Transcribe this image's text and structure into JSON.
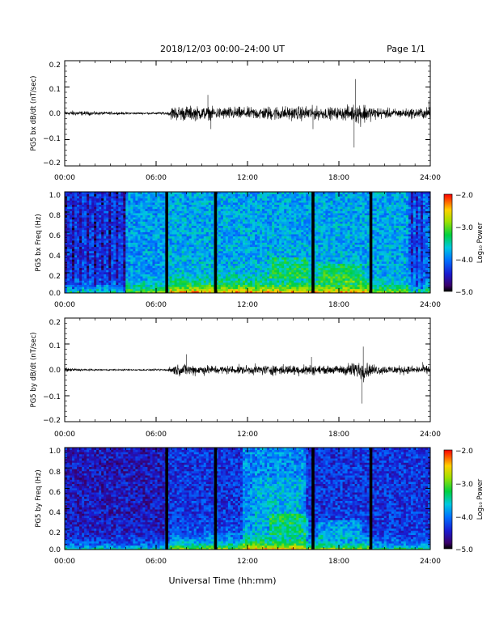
{
  "header": {
    "title": "2018/12/03  00:00–24:00 UT",
    "page_label": "Page 1/1"
  },
  "footer": {
    "xlabel": "Universal Time (hh:mm)"
  },
  "chart_data": [
    {
      "type": "line",
      "panel": "bx-waveform",
      "ylabel": "PG5 bx dB/dt (nT/sec)",
      "x_ticks": [
        "00:00",
        "06:00",
        "12:00",
        "18:00",
        "24:00"
      ],
      "xlim": [
        0,
        24
      ],
      "ylim": [
        -0.2,
        0.2
      ],
      "y_ticks": [
        "0.2",
        "0.1",
        "0.0",
        "−0.1",
        "−0.2"
      ],
      "y_tick_values": [
        0.2,
        0.1,
        0.0,
        -0.1,
        -0.2
      ],
      "series": [
        {
          "amplitude_envelope": [
            [
              0.0,
              0.025
            ],
            [
              0.2,
              0.012
            ],
            [
              0.5,
              0.018
            ],
            [
              1.0,
              0.015
            ],
            [
              2.0,
              0.012
            ],
            [
              3.0,
              0.01
            ],
            [
              4.0,
              0.008
            ],
            [
              5.0,
              0.007
            ],
            [
              6.0,
              0.008
            ],
            [
              6.8,
              0.01
            ],
            [
              7.0,
              0.045
            ],
            [
              7.5,
              0.05
            ],
            [
              8.0,
              0.05
            ],
            [
              9.0,
              0.045
            ],
            [
              10.0,
              0.04
            ],
            [
              11.0,
              0.045
            ],
            [
              12.0,
              0.04
            ],
            [
              13.0,
              0.045
            ],
            [
              14.0,
              0.05
            ],
            [
              15.0,
              0.045
            ],
            [
              16.0,
              0.05
            ],
            [
              17.0,
              0.04
            ],
            [
              18.0,
              0.04
            ],
            [
              19.0,
              0.06
            ],
            [
              19.5,
              0.08
            ],
            [
              20.0,
              0.05
            ],
            [
              21.0,
              0.035
            ],
            [
              22.0,
              0.03
            ],
            [
              23.0,
              0.035
            ],
            [
              24.0,
              0.04
            ]
          ],
          "spikes": [
            [
              19.1,
              0.13
            ],
            [
              19.0,
              -0.13
            ],
            [
              9.4,
              0.07
            ],
            [
              9.6,
              -0.06
            ],
            [
              16.3,
              -0.06
            ],
            [
              23.9,
              0.05
            ]
          ]
        }
      ]
    },
    {
      "type": "heatmap",
      "panel": "bx-spectrogram",
      "ylabel": "PG5 bx Freq (Hz)",
      "x_ticks": [
        "00:00",
        "06:00",
        "12:00",
        "18:00",
        "24:00"
      ],
      "xlim": [
        0,
        24
      ],
      "ylim": [
        0.0,
        1.0
      ],
      "y_ticks": [
        "1.0",
        "0.8",
        "0.6",
        "0.4",
        "0.2",
        "0.0"
      ],
      "y_tick_values": [
        1.0,
        0.8,
        0.6,
        0.4,
        0.2,
        0.0
      ],
      "data_gaps_ut": [
        6.7,
        9.9,
        16.3,
        20.1
      ],
      "colorbar": {
        "label": "Log₁₀ Power",
        "range": [
          -5.0,
          -2.0
        ],
        "ticks": [
          "−2.0",
          "−3.0",
          "−4.0",
          "−5.0"
        ],
        "tick_values": [
          -2.0,
          -3.0,
          -4.0,
          -5.0
        ]
      }
    },
    {
      "type": "line",
      "panel": "by-waveform",
      "ylabel": "PG5 by dB/dt (nT/sec)",
      "x_ticks": [
        "00:00",
        "06:00",
        "12:00",
        "18:00",
        "24:00"
      ],
      "xlim": [
        0,
        24
      ],
      "ylim": [
        -0.2,
        0.2
      ],
      "y_ticks": [
        "0.2",
        "0.1",
        "0.0",
        "−0.1",
        "−0.2"
      ],
      "y_tick_values": [
        0.2,
        0.1,
        0.0,
        -0.1,
        -0.2
      ],
      "series": [
        {
          "amplitude_envelope": [
            [
              0.0,
              0.03
            ],
            [
              0.2,
              0.012
            ],
            [
              0.5,
              0.012
            ],
            [
              1.0,
              0.008
            ],
            [
              2.0,
              0.006
            ],
            [
              3.0,
              0.005
            ],
            [
              4.0,
              0.005
            ],
            [
              5.0,
              0.005
            ],
            [
              6.0,
              0.006
            ],
            [
              6.8,
              0.008
            ],
            [
              7.0,
              0.035
            ],
            [
              8.0,
              0.04
            ],
            [
              9.0,
              0.035
            ],
            [
              10.0,
              0.03
            ],
            [
              11.0,
              0.03
            ],
            [
              12.0,
              0.03
            ],
            [
              13.0,
              0.035
            ],
            [
              14.0,
              0.035
            ],
            [
              15.0,
              0.035
            ],
            [
              16.0,
              0.04
            ],
            [
              17.0,
              0.025
            ],
            [
              18.0,
              0.03
            ],
            [
              19.0,
              0.055
            ],
            [
              19.7,
              0.07
            ],
            [
              20.0,
              0.04
            ],
            [
              21.0,
              0.03
            ],
            [
              22.0,
              0.03
            ],
            [
              23.0,
              0.025
            ],
            [
              24.0,
              0.03
            ]
          ],
          "spikes": [
            [
              19.6,
              0.09
            ],
            [
              19.5,
              -0.13
            ],
            [
              8.0,
              0.06
            ],
            [
              16.2,
              0.05
            ],
            [
              23.5,
              0.03
            ]
          ]
        }
      ]
    },
    {
      "type": "heatmap",
      "panel": "by-spectrogram",
      "ylabel": "PG5 by Freq (Hz)",
      "x_ticks": [
        "00:00",
        "06:00",
        "12:00",
        "18:00",
        "24:00"
      ],
      "xlim": [
        0,
        24
      ],
      "ylim": [
        0.0,
        1.0
      ],
      "y_ticks": [
        "1.0",
        "0.8",
        "0.6",
        "0.4",
        "0.2",
        "0.0"
      ],
      "y_tick_values": [
        1.0,
        0.8,
        0.6,
        0.4,
        0.2,
        0.0
      ],
      "data_gaps_ut": [
        6.7,
        9.9,
        16.3,
        20.1
      ],
      "colorbar": {
        "label": "Log₁₀ Power",
        "range": [
          -5.0,
          -2.0
        ],
        "ticks": [
          "−2.0",
          "−3.0",
          "−4.0",
          "−5.0"
        ],
        "tick_values": [
          -2.0,
          -3.0,
          -4.0,
          -5.0
        ]
      }
    }
  ]
}
